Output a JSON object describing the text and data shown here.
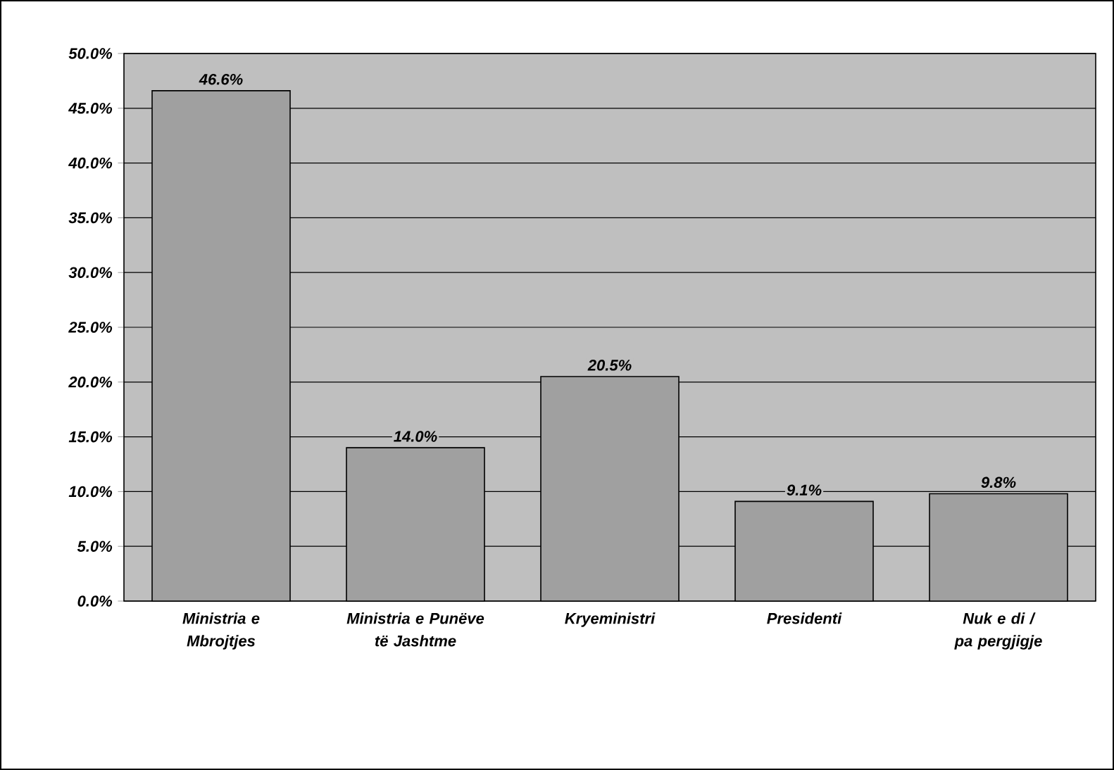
{
  "chart_data": {
    "type": "bar",
    "categories": [
      "Ministria e Mbrojtjes",
      "Ministria e Punëve të Jashtme",
      "Kryeministri",
      "Presidenti",
      "Nuk e di / pa pergjigje"
    ],
    "values": [
      46.6,
      14.0,
      20.5,
      9.1,
      9.8
    ],
    "value_labels": [
      "46.6%",
      "14.0%",
      "20.5%",
      "9.1%",
      "9.8%"
    ],
    "color": "#a0a0a0",
    "ylim": [
      0,
      50
    ],
    "yticks": [
      {
        "value": 0,
        "label": "0.0%"
      },
      {
        "value": 5,
        "label": "5.0%"
      },
      {
        "value": 10,
        "label": "10.0%"
      },
      {
        "value": 15,
        "label": "15.0%"
      },
      {
        "value": 20,
        "label": "20.0%"
      },
      {
        "value": 25,
        "label": "25.0%"
      },
      {
        "value": 30,
        "label": "30.0%"
      },
      {
        "value": 35,
        "label": "35.0%"
      },
      {
        "value": 40,
        "label": "40.0%"
      },
      {
        "value": 45,
        "label": "45.0%"
      },
      {
        "value": 50,
        "label": "50.0%"
      }
    ],
    "grid": "y"
  }
}
